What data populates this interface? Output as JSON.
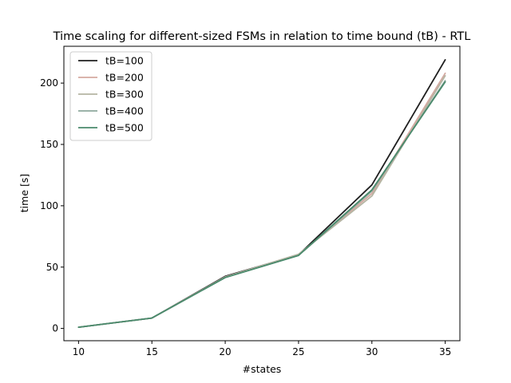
{
  "chart_data": {
    "type": "line",
    "title": "Time scaling for different-sized FSMs in relation to time bound (tB) - RTL",
    "xlabel": "#states",
    "ylabel": "time [s]",
    "x": [
      10,
      15,
      20,
      25,
      30,
      35
    ],
    "xticks": [
      10,
      15,
      20,
      25,
      30,
      35
    ],
    "yticks": [
      0,
      50,
      100,
      150,
      200
    ],
    "xlim": [
      9,
      36
    ],
    "ylim": [
      -10,
      230
    ],
    "grid": false,
    "legend_position": "top-left",
    "series": [
      {
        "name": "tB=100",
        "color": "#1f1f1f",
        "values": [
          1.0,
          8.5,
          42.5,
          60.0,
          117.0,
          219.0
        ]
      },
      {
        "name": "tB=200",
        "color": "#d4a9a1",
        "values": [
          1.0,
          8.5,
          42.0,
          60.0,
          110.0,
          208.0
        ]
      },
      {
        "name": "tB=300",
        "color": "#b5b5a3",
        "values": [
          1.0,
          8.5,
          42.0,
          60.5,
          108.0,
          206.0
        ]
      },
      {
        "name": "tB=400",
        "color": "#8ea89d",
        "values": [
          1.0,
          8.5,
          41.5,
          59.5,
          112.0,
          202.0
        ]
      },
      {
        "name": "tB=500",
        "color": "#4a8a6c",
        "values": [
          1.0,
          8.5,
          41.5,
          59.5,
          113.0,
          201.0
        ]
      }
    ]
  }
}
